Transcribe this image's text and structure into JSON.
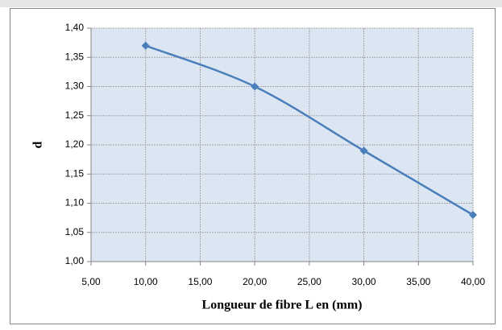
{
  "chart_data": {
    "type": "line",
    "x_label": "Longueur de fibre L en  (mm)",
    "y_label": "d",
    "x": [
      10,
      20,
      30,
      40
    ],
    "values": [
      1.37,
      1.3,
      1.19,
      1.08
    ],
    "color": "#4a7ebb",
    "smooth": true,
    "grid": true,
    "xlim": [
      5,
      40
    ],
    "ylim": [
      1.0,
      1.4
    ],
    "xticks": [
      {
        "value": 5,
        "label": "5,00"
      },
      {
        "value": 10,
        "label": "10,00"
      },
      {
        "value": 15,
        "label": "15,00"
      },
      {
        "value": 20,
        "label": "20,00"
      },
      {
        "value": 25,
        "label": "25,00"
      },
      {
        "value": 30,
        "label": "30,00"
      },
      {
        "value": 35,
        "label": "35,00"
      },
      {
        "value": 40,
        "label": "40,00"
      }
    ],
    "yticks": [
      {
        "value": 1.0,
        "label": "1,00"
      },
      {
        "value": 1.05,
        "label": "1,05"
      },
      {
        "value": 1.1,
        "label": "1,10"
      },
      {
        "value": 1.15,
        "label": "1,15"
      },
      {
        "value": 1.2,
        "label": "1,20"
      },
      {
        "value": 1.25,
        "label": "1,25"
      },
      {
        "value": 1.3,
        "label": "1,30"
      },
      {
        "value": 1.35,
        "label": "1,35"
      },
      {
        "value": 1.4,
        "label": "1,40"
      }
    ]
  }
}
